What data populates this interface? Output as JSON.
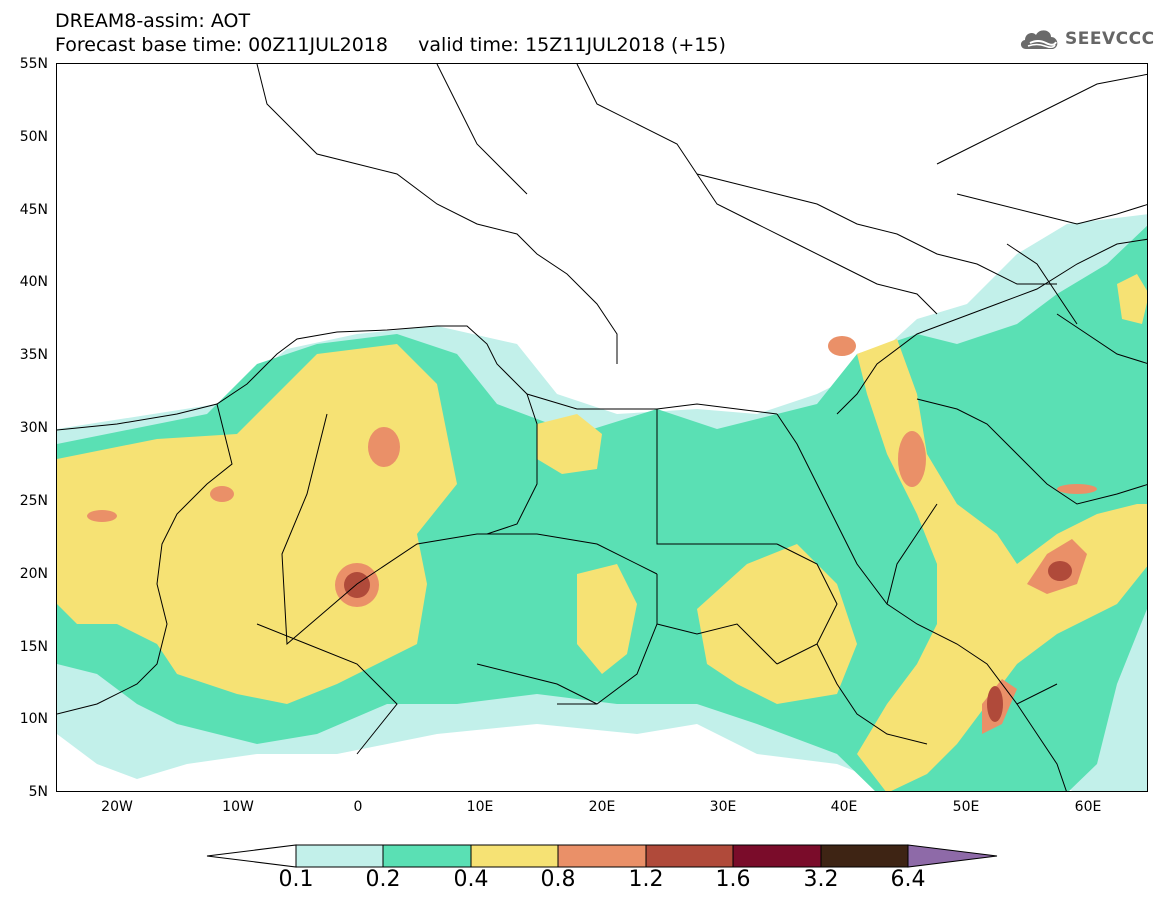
{
  "header": {
    "title": "DREAM8-assim: AOT",
    "base_time_label": "Forecast base time: 00Z11JUL2018",
    "valid_time_label": "valid time: 15Z11JUL2018 (+15)",
    "logo_text": "SEEVCCC"
  },
  "map": {
    "lat_labels": [
      "55N",
      "50N",
      "45N",
      "40N",
      "35N",
      "30N",
      "25N",
      "20N",
      "15N",
      "10N",
      "5N"
    ],
    "lon_labels": [
      "20W",
      "10W",
      "0",
      "10E",
      "20E",
      "30E",
      "40E",
      "50E",
      "60E"
    ],
    "extent": {
      "lon_min": -25,
      "lon_max": 65,
      "lat_min": 5,
      "lat_max": 55
    }
  },
  "legend": {
    "values": [
      "0.1",
      "0.2",
      "0.4",
      "0.8",
      "1.2",
      "1.6",
      "3.2",
      "6.4"
    ],
    "colors": [
      "#c2f0ea",
      "#5ae0b4",
      "#f6e274",
      "#ea9068",
      "#b04a3a",
      "#7a0c2a",
      "#3e2414",
      "#8e6aa8"
    ]
  },
  "colors": {
    "c1": "#c2f0ea",
    "c2": "#5ae0b4",
    "c3": "#f6e274",
    "c4": "#ea9068",
    "c5": "#b04a3a",
    "c6": "#7a0c2a"
  }
}
